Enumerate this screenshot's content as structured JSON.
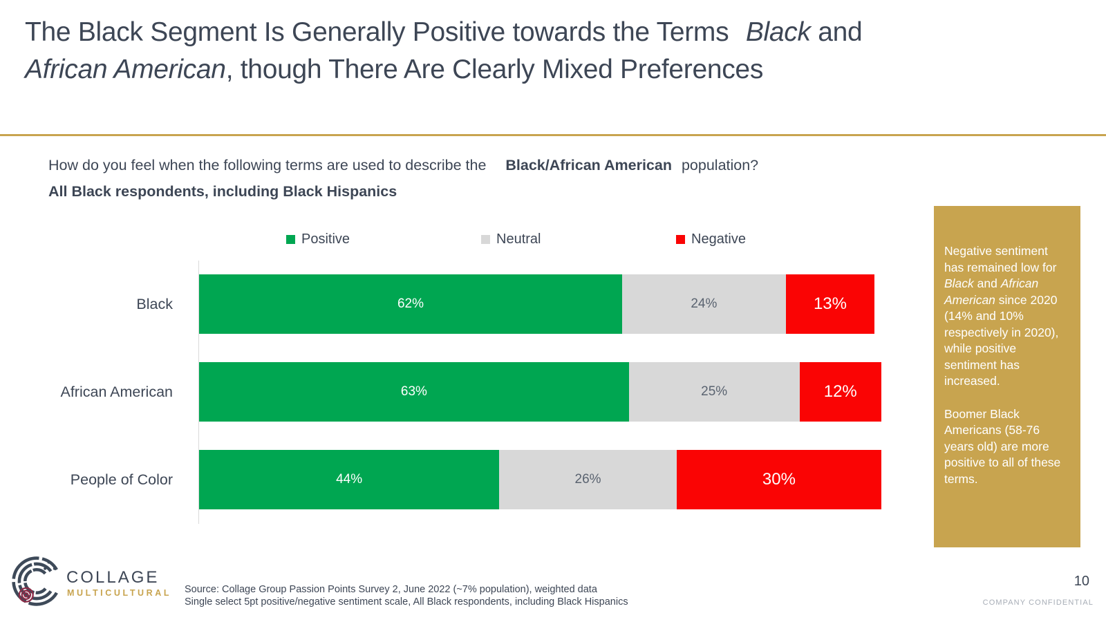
{
  "title": {
    "line1": [
      {
        "t": "The Black Segment Is Generally Positive towards the Terms "
      },
      {
        "t": "Black",
        "i": true,
        "gap": 14
      },
      {
        "t": " and"
      }
    ],
    "line2": [
      {
        "t": "African American",
        "i": true
      },
      {
        "t": ", though There Are Clearly Mixed Preferences"
      }
    ]
  },
  "question": {
    "line1": [
      {
        "t": "How do you feel when the following terms are used to describe the "
      },
      {
        "t": "Black/African American",
        "b": true,
        "gap": 22
      },
      {
        "t": " population?",
        "gap": 8
      }
    ],
    "line2": "All Black respondents, including Black Hispanics"
  },
  "chart_data": {
    "type": "bar",
    "orientation": "horizontal",
    "stacked": true,
    "categories": [
      "Black",
      "African American",
      "People of Color"
    ],
    "series": [
      {
        "name": "Positive",
        "color": "#00A651",
        "values": [
          62,
          63,
          44
        ]
      },
      {
        "name": "Neutral",
        "color": "#D8D8D8",
        "values": [
          24,
          25,
          26
        ]
      },
      {
        "name": "Negative",
        "color": "#FA0404",
        "values": [
          13,
          12,
          30
        ]
      }
    ],
    "value_suffix": "%",
    "xlim": [
      0,
      100
    ],
    "legend_position": "top",
    "grid": false
  },
  "sidebar": {
    "paragraphs": [
      [
        {
          "t": "Negative sentiment has remained low for "
        },
        {
          "t": "Black",
          "i": true
        },
        {
          "t": " and "
        },
        {
          "t": "African American",
          "i": true
        },
        {
          "t": " since 2020 (14% and 10% respectively in 2020), while positive sentiment has increased."
        }
      ],
      [
        {
          "t": "Boomer Black Americans (58-76 years old) are more positive to all of these terms."
        }
      ]
    ]
  },
  "logo": {
    "name": "COLLAGE",
    "subtitle": "MULTICULTURAL"
  },
  "source": {
    "line1": "Source: Collage Group Passion Points Survey 2, June 2022 (~7% population), weighted data",
    "line2": "Single select 5pt positive/negative sentiment scale, All Black respondents, including Black Hispanics"
  },
  "footer": {
    "page_number": "10",
    "confidential": "COMPANY CONFIDENTIAL"
  },
  "colors": {
    "accent_gold": "#C8A44F",
    "text_dark": "#3D4655",
    "positive_green": "#00A651",
    "neutral_gray": "#D8D8D8",
    "negative_red": "#FA0404",
    "axis_gray": "#DADADA"
  }
}
